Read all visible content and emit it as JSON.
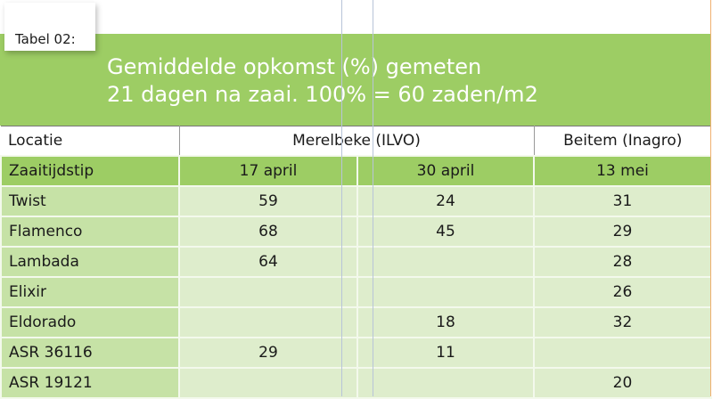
{
  "label": "Tabel 02:",
  "title_line1": "Gemiddelde opkomst (%) gemeten",
  "title_line2": "21 dagen na zaai. 100% = 60 zaden/m2",
  "header": {
    "locatie": "Locatie",
    "merelbeke": "Merelbeke (ILVO)",
    "beitem": "Beitem (Inagro)"
  },
  "dates": {
    "label": "Zaaitijdstip",
    "d1": "17 april",
    "d2": "30 april",
    "d3": "13 mei"
  },
  "rows": [
    {
      "name": "Twist",
      "a": "59",
      "b": "24",
      "c": "31"
    },
    {
      "name": "Flamenco",
      "a": "68",
      "b": "45",
      "c": "29"
    },
    {
      "name": "Lambada",
      "a": "64",
      "b": "",
      "c": "28"
    },
    {
      "name": "Elixir",
      "a": "",
      "b": "",
      "c": "26"
    },
    {
      "name": "Eldorado",
      "a": "",
      "b": "18",
      "c": "32"
    },
    {
      "name": "ASR 36116",
      "a": "29",
      "b": "11",
      "c": ""
    },
    {
      "name": "ASR 19121",
      "a": "",
      "b": "",
      "c": "20"
    }
  ]
}
